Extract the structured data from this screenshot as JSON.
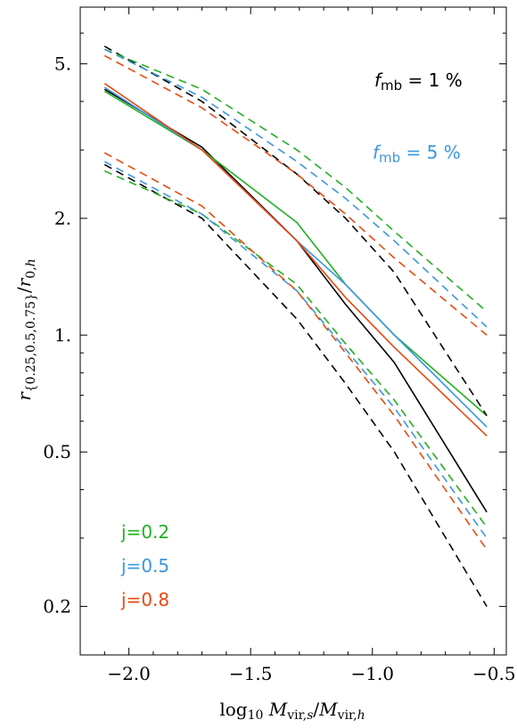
{
  "chart_data": {
    "type": "line",
    "title": "",
    "xlabel": "log10 Mvir,s/Mvir,h",
    "ylabel": "r{0.25,0.5,0.75}/r0,h",
    "xlim": [
      -2.2,
      -0.45
    ],
    "ylim": [
      0.15,
      7.0
    ],
    "yscale": "log",
    "x_ticks": [
      -2.0,
      -1.5,
      -1.0,
      -0.5
    ],
    "x_tick_labels": [
      "−2.0",
      "−1.5",
      "−1.0",
      "−0.5"
    ],
    "y_ticks": [
      0.2,
      0.5,
      1.0,
      2.0,
      5.0
    ],
    "y_tick_labels": [
      "0.2",
      "0.5",
      "1.",
      "2.",
      "5."
    ],
    "x": [
      -2.1,
      -1.7,
      -1.31,
      -1.11,
      -0.91,
      -0.53
    ],
    "colors": {
      "j02": "#22b022",
      "j05": "#3a97e0",
      "j08": "#e84a10",
      "black": "#000000"
    },
    "series": [
      {
        "color": "black",
        "dash": "solid",
        "values": [
          4.3,
          3.05,
          1.75,
          1.2,
          0.85,
          0.35
        ]
      },
      {
        "color": "j02",
        "dash": "solid",
        "values": [
          4.25,
          3.0,
          1.95,
          1.35,
          1.0,
          0.62
        ]
      },
      {
        "color": "j05",
        "dash": "solid",
        "values": [
          4.35,
          3.0,
          1.75,
          1.35,
          1.0,
          0.58
        ]
      },
      {
        "color": "j08",
        "dash": "solid",
        "values": [
          4.45,
          3.0,
          1.75,
          1.25,
          0.93,
          0.55
        ]
      },
      {
        "color": "black",
        "dash": "dashed",
        "values": [
          5.55,
          4.0,
          2.6,
          2.0,
          1.45,
          0.62
        ]
      },
      {
        "color": "j02",
        "dash": "dashed",
        "values": [
          5.45,
          4.3,
          3.0,
          2.4,
          1.85,
          1.15
        ]
      },
      {
        "color": "j05",
        "dash": "dashed",
        "values": [
          5.45,
          4.1,
          2.8,
          2.25,
          1.75,
          1.05
        ]
      },
      {
        "color": "j08",
        "dash": "dashed",
        "values": [
          5.25,
          3.85,
          2.6,
          2.05,
          1.58,
          1.0
        ]
      },
      {
        "color": "black",
        "dash": "dashed",
        "values": [
          2.75,
          2.0,
          1.1,
          0.75,
          0.5,
          0.2
        ]
      },
      {
        "color": "j02",
        "dash": "dashed",
        "values": [
          2.65,
          2.05,
          1.35,
          0.95,
          0.68,
          0.32
        ]
      },
      {
        "color": "j05",
        "dash": "dashed",
        "values": [
          2.8,
          2.05,
          1.3,
          0.92,
          0.65,
          0.3
        ]
      },
      {
        "color": "j08",
        "dash": "dashed",
        "values": [
          2.95,
          2.15,
          1.3,
          0.9,
          0.62,
          0.28
        ]
      }
    ],
    "annotations": {
      "fmb1": {
        "f": "f",
        "sub": "mb",
        "rest": " = 1 %",
        "color": "black"
      },
      "fmb5": {
        "f": "f",
        "sub": "mb",
        "rest": " = 5 %",
        "color": "j05"
      }
    },
    "legend": {
      "position": "bottom-left",
      "items": [
        {
          "label": "j=0.2",
          "color": "j02"
        },
        {
          "label": "j=0.5",
          "color": "j05"
        },
        {
          "label": "j=0.8",
          "color": "j08"
        }
      ]
    }
  }
}
